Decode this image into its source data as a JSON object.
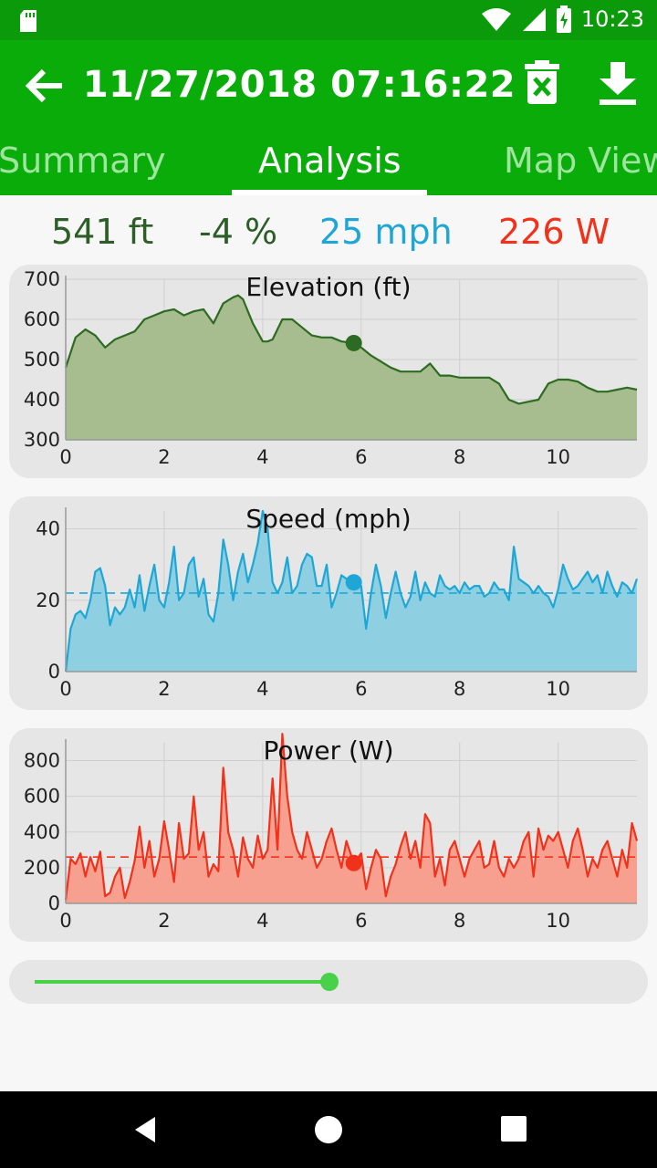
{
  "status_bar": {
    "time": "10:23",
    "icons": [
      "sd-card-icon",
      "wifi-icon",
      "signal-icon",
      "battery-charging-icon"
    ]
  },
  "app_bar": {
    "title": "11/27/2018 07:16:22",
    "icons": {
      "back": "arrow-left-icon",
      "delete": "trash-icon",
      "download": "download-icon"
    }
  },
  "tabs": [
    {
      "label": "Summary",
      "active": false
    },
    {
      "label": "Analysis",
      "active": true
    },
    {
      "label": "Map View",
      "active": false
    }
  ],
  "stats": {
    "elevation": "541 ft",
    "grade": "-4 %",
    "speed": "25 mph",
    "power": "226 W"
  },
  "colors": {
    "app_bar": "#0aac0a",
    "elevation_line": "#2e6b22",
    "elevation_fill": "#a7bd8f",
    "speed_line": "#1ea7d6",
    "speed_fill": "#8ed0e2",
    "power_line": "#f2311b",
    "power_fill": "#f7a090",
    "slider": "#49d149"
  },
  "chart_data": [
    {
      "type": "area",
      "title": "Elevation (ft)",
      "ylim": [
        300,
        700
      ],
      "yticks": [
        300,
        400,
        500,
        600,
        700
      ],
      "xticks": [
        0,
        2,
        4,
        6,
        8,
        10
      ],
      "xlim": [
        0,
        11.6
      ],
      "grid": true,
      "cursor": {
        "x": 5.85,
        "y": 541
      },
      "series": [
        {
          "x": [
            0,
            0.2,
            0.4,
            0.6,
            0.8,
            1.0,
            1.2,
            1.4,
            1.6,
            1.8,
            2.0,
            2.2,
            2.4,
            2.6,
            2.8,
            3.0,
            3.2,
            3.4,
            3.5,
            3.6,
            3.8,
            4.0,
            4.1,
            4.2,
            4.4,
            4.6,
            4.8,
            5.0,
            5.2,
            5.4,
            5.6,
            5.85,
            6.0,
            6.2,
            6.4,
            6.6,
            6.8,
            7.0,
            7.2,
            7.4,
            7.6,
            7.8,
            8.0,
            8.2,
            8.4,
            8.6,
            8.8,
            9.0,
            9.2,
            9.4,
            9.6,
            9.8,
            10.0,
            10.2,
            10.4,
            10.6,
            10.8,
            11.0,
            11.2,
            11.4,
            11.6
          ],
          "y": [
            480,
            555,
            575,
            560,
            530,
            550,
            560,
            570,
            600,
            610,
            620,
            625,
            610,
            620,
            625,
            590,
            640,
            655,
            660,
            650,
            590,
            545,
            545,
            550,
            600,
            600,
            580,
            560,
            555,
            555,
            545,
            541,
            530,
            510,
            495,
            480,
            470,
            470,
            470,
            490,
            460,
            460,
            455,
            455,
            455,
            455,
            440,
            400,
            390,
            395,
            400,
            440,
            450,
            450,
            445,
            430,
            420,
            420,
            425,
            430,
            425
          ]
        }
      ]
    },
    {
      "type": "area",
      "title": "Speed (mph)",
      "ylim": [
        0,
        45
      ],
      "yticks": [
        0,
        20,
        40
      ],
      "xticks": [
        0,
        2,
        4,
        6,
        8,
        10
      ],
      "xlim": [
        0,
        11.6
      ],
      "grid": true,
      "average": 22,
      "cursor": {
        "x": 5.85,
        "y": 25
      },
      "series": [
        {
          "x": [
            0,
            0.1,
            0.2,
            0.3,
            0.4,
            0.5,
            0.6,
            0.7,
            0.8,
            0.9,
            1.0,
            1.1,
            1.2,
            1.3,
            1.4,
            1.5,
            1.6,
            1.7,
            1.8,
            1.9,
            2.0,
            2.1,
            2.2,
            2.3,
            2.4,
            2.5,
            2.6,
            2.7,
            2.8,
            2.9,
            3.0,
            3.1,
            3.2,
            3.3,
            3.4,
            3.5,
            3.6,
            3.7,
            3.8,
            3.9,
            4.0,
            4.1,
            4.2,
            4.3,
            4.4,
            4.5,
            4.6,
            4.7,
            4.8,
            4.9,
            5.0,
            5.1,
            5.2,
            5.3,
            5.4,
            5.5,
            5.6,
            5.7,
            5.85,
            6.0,
            6.1,
            6.2,
            6.3,
            6.4,
            6.5,
            6.6,
            6.7,
            6.8,
            6.9,
            7.0,
            7.1,
            7.2,
            7.3,
            7.4,
            7.5,
            7.6,
            7.7,
            7.8,
            7.9,
            8.0,
            8.1,
            8.2,
            8.3,
            8.4,
            8.5,
            8.6,
            8.7,
            8.8,
            8.9,
            9.0,
            9.1,
            9.2,
            9.3,
            9.4,
            9.5,
            9.6,
            9.7,
            9.8,
            9.9,
            10.0,
            10.1,
            10.2,
            10.3,
            10.4,
            10.5,
            10.6,
            10.7,
            10.8,
            10.9,
            11.0,
            11.1,
            11.2,
            11.3,
            11.4,
            11.5,
            11.6
          ],
          "y": [
            0,
            12,
            16,
            17,
            15,
            20,
            28,
            29,
            24,
            13,
            18,
            16,
            18,
            23,
            18,
            27,
            17,
            24,
            30,
            20,
            18,
            25,
            35,
            20,
            22,
            30,
            32,
            21,
            26,
            16,
            14,
            22,
            37,
            30,
            20,
            28,
            33,
            25,
            30,
            36,
            45,
            40,
            25,
            22,
            25,
            32,
            22,
            24,
            30,
            33,
            32,
            24,
            24,
            30,
            18,
            22,
            27,
            26,
            25,
            24,
            12,
            22,
            30,
            24,
            15,
            22,
            28,
            22,
            18,
            21,
            28,
            20,
            25,
            22,
            21,
            27,
            24,
            23,
            24,
            22,
            25,
            23,
            24,
            24,
            21,
            22,
            25,
            23,
            23,
            20,
            35,
            26,
            25,
            24,
            22,
            24,
            22,
            21,
            18,
            23,
            30,
            26,
            23,
            24,
            26,
            28,
            25,
            27,
            22,
            28,
            24,
            21,
            25,
            24,
            22,
            26
          ]
        }
      ]
    },
    {
      "type": "area",
      "title": "Power (W)",
      "ylim": [
        0,
        900
      ],
      "yticks": [
        0,
        200,
        400,
        600,
        800
      ],
      "xticks": [
        0,
        2,
        4,
        6,
        8,
        10
      ],
      "xlim": [
        0,
        11.6
      ],
      "grid": true,
      "average": 260,
      "cursor": {
        "x": 5.85,
        "y": 226
      },
      "series": [
        {
          "x": [
            0,
            0.1,
            0.2,
            0.3,
            0.4,
            0.5,
            0.6,
            0.7,
            0.8,
            0.9,
            1.0,
            1.1,
            1.2,
            1.3,
            1.4,
            1.5,
            1.6,
            1.7,
            1.8,
            1.9,
            2.0,
            2.1,
            2.2,
            2.3,
            2.4,
            2.5,
            2.6,
            2.7,
            2.8,
            2.9,
            3.0,
            3.1,
            3.2,
            3.3,
            3.4,
            3.5,
            3.6,
            3.7,
            3.8,
            3.9,
            4.0,
            4.1,
            4.2,
            4.3,
            4.4,
            4.5,
            4.6,
            4.7,
            4.8,
            4.9,
            5.0,
            5.1,
            5.2,
            5.3,
            5.4,
            5.5,
            5.6,
            5.7,
            5.85,
            6.0,
            6.1,
            6.2,
            6.3,
            6.4,
            6.5,
            6.6,
            6.7,
            6.8,
            6.9,
            7.0,
            7.1,
            7.2,
            7.3,
            7.4,
            7.5,
            7.6,
            7.7,
            7.8,
            7.9,
            8.0,
            8.1,
            8.2,
            8.3,
            8.4,
            8.5,
            8.6,
            8.7,
            8.8,
            8.9,
            9.0,
            9.1,
            9.2,
            9.3,
            9.4,
            9.5,
            9.6,
            9.7,
            9.8,
            9.9,
            10.0,
            10.1,
            10.2,
            10.3,
            10.4,
            10.5,
            10.6,
            10.7,
            10.8,
            10.9,
            11.0,
            11.1,
            11.2,
            11.3,
            11.4,
            11.5,
            11.6
          ],
          "y": [
            20,
            250,
            220,
            280,
            150,
            260,
            180,
            290,
            40,
            60,
            150,
            200,
            30,
            120,
            240,
            430,
            200,
            350,
            150,
            250,
            460,
            300,
            120,
            450,
            250,
            280,
            600,
            300,
            400,
            150,
            220,
            180,
            760,
            400,
            300,
            150,
            370,
            250,
            200,
            380,
            250,
            300,
            700,
            300,
            950,
            600,
            400,
            300,
            250,
            400,
            300,
            200,
            250,
            350,
            420,
            300,
            200,
            350,
            226,
            280,
            80,
            200,
            300,
            250,
            40,
            150,
            220,
            320,
            400,
            250,
            350,
            200,
            500,
            450,
            150,
            250,
            100,
            300,
            350,
            250,
            150,
            250,
            300,
            350,
            200,
            220,
            350,
            200,
            150,
            250,
            200,
            250,
            350,
            400,
            150,
            420,
            300,
            380,
            350,
            400,
            300,
            200,
            350,
            420,
            300,
            150,
            250,
            200,
            300,
            350,
            250,
            150,
            300,
            200,
            450,
            350
          ]
        }
      ]
    }
  ],
  "slider": {
    "progress": 0.5
  }
}
